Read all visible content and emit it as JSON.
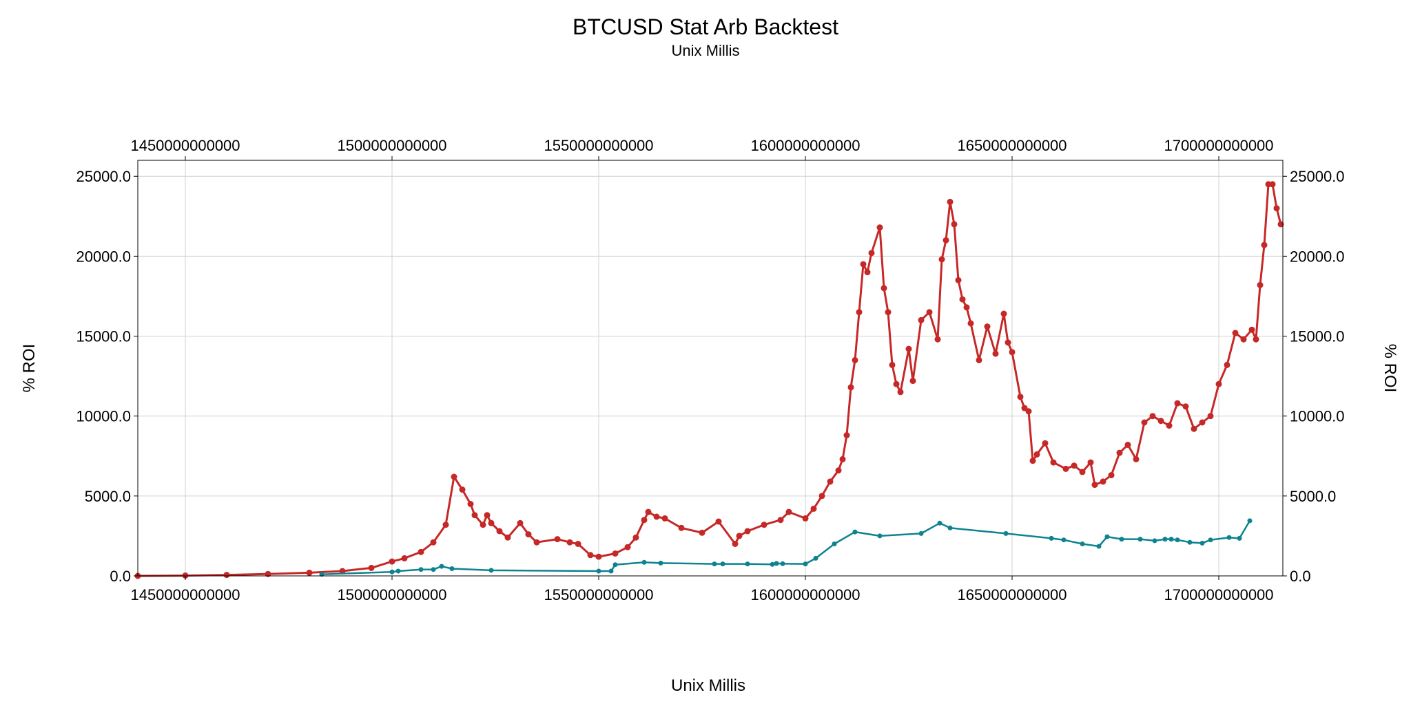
{
  "chart_data": {
    "type": "line",
    "title": "BTCUSD Stat Arb Backtest",
    "subtitle": "Unix Millis",
    "xlabel": "Unix Millis",
    "ylabel": "% ROI",
    "ylabel_right": "% ROI",
    "xlim": [
      1438500000000,
      1715500000000
    ],
    "ylim": [
      0,
      26000
    ],
    "x_ticks": [
      1450000000000,
      1500000000000,
      1550000000000,
      1600000000000,
      1650000000000,
      1700000000000
    ],
    "x_tick_labels": [
      "1450000000000",
      "1500000000000",
      "1550000000000",
      "1600000000000",
      "1650000000000",
      "1700000000000"
    ],
    "y_ticks": [
      0,
      5000,
      10000,
      15000,
      20000,
      25000
    ],
    "y_tick_labels": [
      "0.0",
      "5000.0",
      "10000.0",
      "15000.0",
      "20000.0",
      "25000.0"
    ],
    "grid": true,
    "colors": {
      "series_red": "#c62828",
      "series_teal": "#0e8390",
      "grid": "#d0d0d0",
      "axis": "#000000"
    },
    "series": [
      {
        "color": "#c62828",
        "marker": "circle",
        "x": [
          1438500000000,
          1450000000000,
          1460000000000,
          1470000000000,
          1480000000000,
          1488000000000,
          1495000000000,
          1500000000000,
          1503000000000,
          1507000000000,
          1510000000000,
          1513000000000,
          1515000000000,
          1517000000000,
          1519000000000,
          1520000000000,
          1522000000000,
          1523000000000,
          1524000000000,
          1526000000000,
          1528000000000,
          1531000000000,
          1533000000000,
          1535000000000,
          1540000000000,
          1543000000000,
          1545000000000,
          1548000000000,
          1550000000000,
          1554000000000,
          1557000000000,
          1559000000000,
          1561000000000,
          1562000000000,
          1564000000000,
          1566000000000,
          1570000000000,
          1575000000000,
          1579000000000,
          1583000000000,
          1584000000000,
          1586000000000,
          1590000000000,
          1594000000000,
          1596000000000,
          1600000000000,
          1602000000000,
          1604000000000,
          1606000000000,
          1608000000000,
          1609000000000,
          1610000000000,
          1611000000000,
          1612000000000,
          1613000000000,
          1614000000000,
          1615000000000,
          1616000000000,
          1618000000000,
          1619000000000,
          1620000000000,
          1621000000000,
          1622000000000,
          1623000000000,
          1625000000000,
          1626000000000,
          1628000000000,
          1630000000000,
          1632000000000,
          1633000000000,
          1634000000000,
          1635000000000,
          1636000000000,
          1637000000000,
          1638000000000,
          1639000000000,
          1640000000000,
          1642000000000,
          1644000000000,
          1646000000000,
          1648000000000,
          1649000000000,
          1650000000000,
          1652000000000,
          1653000000000,
          1654000000000,
          1655000000000,
          1656000000000,
          1658000000000,
          1660000000000,
          1663000000000,
          1665000000000,
          1667000000000,
          1669000000000,
          1670000000000,
          1672000000000,
          1674000000000,
          1676000000000,
          1678000000000,
          1680000000000,
          1682000000000,
          1684000000000,
          1686000000000,
          1688000000000,
          1690000000000,
          1692000000000,
          1694000000000,
          1696000000000,
          1698000000000,
          1700000000000,
          1702000000000,
          1704000000000,
          1706000000000,
          1708000000000,
          1709000000000,
          1710000000000,
          1711000000000,
          1712000000000,
          1713000000000,
          1714000000000,
          1715000000000
        ],
        "y": [
          0,
          20,
          60,
          120,
          200,
          300,
          500,
          900,
          1100,
          1500,
          2100,
          3200,
          6200,
          5400,
          4500,
          3800,
          3200,
          3800,
          3300,
          2800,
          2400,
          3300,
          2600,
          2100,
          2300,
          2100,
          2000,
          1300,
          1200,
          1400,
          1800,
          2400,
          3500,
          4000,
          3700,
          3600,
          3000,
          2700,
          3400,
          2000,
          2500,
          2800,
          3200,
          3500,
          4000,
          3600,
          4200,
          5000,
          5900,
          6600,
          7300,
          8800,
          11800,
          13500,
          16500,
          19500,
          19000,
          20200,
          21800,
          18000,
          16500,
          13200,
          12000,
          11500,
          14200,
          12200,
          16000,
          16500,
          14800,
          19800,
          21000,
          23400,
          22000,
          18500,
          17300,
          16800,
          15800,
          13500,
          15600,
          13900,
          16400,
          14600,
          14000,
          11200,
          10500,
          10300,
          7200,
          7600,
          8300,
          7100,
          6700,
          6900,
          6500,
          7100,
          5700,
          5900,
          6300,
          7700,
          8200,
          7300,
          9600,
          10000,
          9700,
          9400,
          10800,
          10600,
          9200,
          9600,
          10000,
          12000,
          13200,
          15200,
          14800,
          15400,
          14800,
          18200,
          20700,
          24500,
          24500,
          23000,
          22000
        ]
      },
      {
        "color": "#0e8390",
        "marker": "circle",
        "x": [
          1483000000000,
          1500000000000,
          1501500000000,
          1507000000000,
          1510000000000,
          1512000000000,
          1514500000000,
          1524000000000,
          1550000000000,
          1553000000000,
          1554000000000,
          1561000000000,
          1565000000000,
          1578000000000,
          1580000000000,
          1586000000000,
          1592000000000,
          1593000000000,
          1594500000000,
          1600000000000,
          1602500000000,
          1607000000000,
          1612000000000,
          1618000000000,
          1628000000000,
          1632500000000,
          1635000000000,
          1648500000000,
          1659500000000,
          1662500000000,
          1667000000000,
          1671000000000,
          1673000000000,
          1676500000000,
          1681000000000,
          1684500000000,
          1687000000000,
          1688500000000,
          1690000000000,
          1693000000000,
          1696000000000,
          1698000000000,
          1702500000000,
          1705000000000,
          1707500000000
        ],
        "y": [
          100,
          250,
          300,
          400,
          400,
          600,
          450,
          350,
          300,
          300,
          700,
          850,
          800,
          750,
          750,
          750,
          720,
          780,
          760,
          750,
          1100,
          2000,
          2750,
          2500,
          2650,
          3300,
          3000,
          2650,
          2350,
          2250,
          2000,
          1850,
          2450,
          2300,
          2300,
          2200,
          2300,
          2300,
          2250,
          2100,
          2050,
          2250,
          2400,
          2350,
          3450
        ]
      }
    ]
  }
}
